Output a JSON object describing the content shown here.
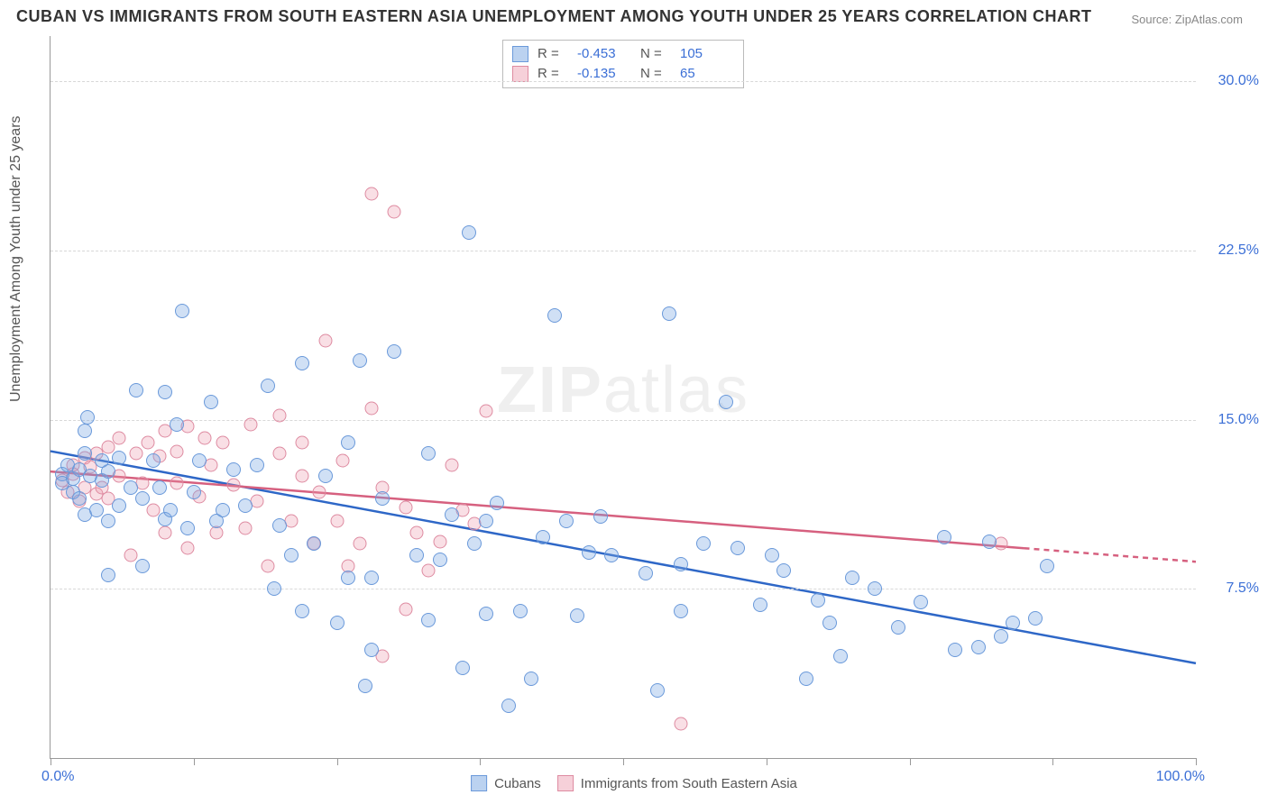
{
  "title": "CUBAN VS IMMIGRANTS FROM SOUTH EASTERN ASIA UNEMPLOYMENT AMONG YOUTH UNDER 25 YEARS CORRELATION CHART",
  "source_prefix": "Source: ",
  "source_name": "ZipAtlas.com",
  "y_axis_title": "Unemployment Among Youth under 25 years",
  "watermark_bold": "ZIP",
  "watermark_thin": "atlas",
  "chart": {
    "type": "scatter",
    "background_color": "#ffffff",
    "grid_color": "#d8d8d8",
    "xlim": [
      0,
      100
    ],
    "ylim": [
      0,
      32
    ],
    "x_labels": {
      "min": "0.0%",
      "max": "100.0%"
    },
    "y_ticks": [
      7.5,
      15.0,
      22.5,
      30.0
    ],
    "y_tick_labels": [
      "7.5%",
      "15.0%",
      "22.5%",
      "30.0%"
    ],
    "x_ticks": [
      0,
      12.5,
      25,
      37.5,
      50,
      62.5,
      75,
      87.5,
      100
    ],
    "series": {
      "blue": {
        "name": "Cubans",
        "R_label": "R =",
        "R": "-0.453",
        "N_label": "N =",
        "N": "105",
        "fill_color": "rgba(120,165,225,0.35)",
        "stroke_color": "#6a99da",
        "line_color": "#2e67c7",
        "trend": {
          "x1": 0,
          "y1": 13.6,
          "x2": 100,
          "y2": 4.2
        },
        "points": [
          [
            1,
            12.6
          ],
          [
            1,
            12.2
          ],
          [
            1.5,
            13
          ],
          [
            2,
            12.4
          ],
          [
            2,
            11.8
          ],
          [
            2.5,
            12.8
          ],
          [
            2.5,
            11.5
          ],
          [
            3,
            13.5
          ],
          [
            3,
            10.8
          ],
          [
            3,
            14.5
          ],
          [
            3.2,
            15.1
          ],
          [
            3.5,
            12.5
          ],
          [
            4,
            11.0
          ],
          [
            4.5,
            13.2
          ],
          [
            4.5,
            12.3
          ],
          [
            5,
            8.1
          ],
          [
            5,
            12.7
          ],
          [
            5,
            10.5
          ],
          [
            6,
            13.3
          ],
          [
            6,
            11.2
          ],
          [
            7,
            12.0
          ],
          [
            7.5,
            16.3
          ],
          [
            8,
            11.5
          ],
          [
            8,
            8.5
          ],
          [
            9,
            13.2
          ],
          [
            9.5,
            12.0
          ],
          [
            10,
            16.2
          ],
          [
            10,
            10.6
          ],
          [
            10.5,
            11.0
          ],
          [
            11,
            14.8
          ],
          [
            11.5,
            19.8
          ],
          [
            12,
            10.2
          ],
          [
            12.5,
            11.8
          ],
          [
            13,
            13.2
          ],
          [
            14,
            15.8
          ],
          [
            14.5,
            10.5
          ],
          [
            15,
            11.0
          ],
          [
            16,
            12.8
          ],
          [
            17,
            11.2
          ],
          [
            18,
            13.0
          ],
          [
            19,
            16.5
          ],
          [
            19.5,
            7.5
          ],
          [
            20,
            10.3
          ],
          [
            21,
            9.0
          ],
          [
            22,
            17.5
          ],
          [
            22,
            6.5
          ],
          [
            23,
            9.5
          ],
          [
            24,
            12.5
          ],
          [
            25,
            6.0
          ],
          [
            26,
            8.0
          ],
          [
            26,
            14.0
          ],
          [
            27,
            17.6
          ],
          [
            27.5,
            3.2
          ],
          [
            28,
            4.8
          ],
          [
            28,
            8
          ],
          [
            29,
            11.5
          ],
          [
            30,
            18.0
          ],
          [
            32,
            9.0
          ],
          [
            33,
            13.5
          ],
          [
            33,
            6.1
          ],
          [
            34,
            8.8
          ],
          [
            35,
            10.8
          ],
          [
            36,
            4.0
          ],
          [
            36.5,
            23.3
          ],
          [
            37,
            9.5
          ],
          [
            38,
            10.5
          ],
          [
            38,
            6.4
          ],
          [
            39,
            11.3
          ],
          [
            40,
            2.3
          ],
          [
            41,
            6.5
          ],
          [
            42,
            3.5
          ],
          [
            43,
            9.8
          ],
          [
            44,
            19.6
          ],
          [
            45,
            10.5
          ],
          [
            46,
            6.3
          ],
          [
            47,
            9.1
          ],
          [
            48,
            10.7
          ],
          [
            49,
            9.0
          ],
          [
            52,
            8.2
          ],
          [
            53,
            3.0
          ],
          [
            54,
            19.7
          ],
          [
            55,
            6.5
          ],
          [
            55,
            8.6
          ],
          [
            57,
            9.5
          ],
          [
            59,
            15.8
          ],
          [
            60,
            9.3
          ],
          [
            62,
            6.8
          ],
          [
            63,
            9.0
          ],
          [
            64,
            8.3
          ],
          [
            66,
            3.5
          ],
          [
            67,
            7.0
          ],
          [
            68,
            6.0
          ],
          [
            69,
            4.5
          ],
          [
            70,
            8.0
          ],
          [
            72,
            7.5
          ],
          [
            74,
            5.8
          ],
          [
            76,
            6.9
          ],
          [
            78,
            9.8
          ],
          [
            79,
            4.8
          ],
          [
            81,
            4.9
          ],
          [
            82,
            9.6
          ],
          [
            83,
            5.4
          ],
          [
            84,
            6.0
          ],
          [
            86,
            6.2
          ],
          [
            87,
            8.5
          ]
        ]
      },
      "pink": {
        "name": "Immigrants from South Eastern Asia",
        "R_label": "R =",
        "R": "-0.135",
        "N_label": "N =",
        "N": "65",
        "fill_color": "rgba(235,150,170,0.30)",
        "stroke_color": "#de8ba1",
        "line_color": "#d6607f",
        "trend": {
          "x1": 0,
          "y1": 12.7,
          "x2": 85,
          "y2": 9.3
        },
        "trend_ext": {
          "x1": 85,
          "y1": 9.3,
          "x2": 100,
          "y2": 8.7
        },
        "points": [
          [
            1,
            12.3
          ],
          [
            1.5,
            11.8
          ],
          [
            2,
            12.6
          ],
          [
            2,
            13.0
          ],
          [
            2.5,
            11.4
          ],
          [
            3,
            12.0
          ],
          [
            3,
            13.3
          ],
          [
            3.5,
            12.9
          ],
          [
            4,
            11.7
          ],
          [
            4,
            13.5
          ],
          [
            4.5,
            12.0
          ],
          [
            5,
            13.8
          ],
          [
            5,
            11.5
          ],
          [
            6,
            12.5
          ],
          [
            6,
            14.2
          ],
          [
            7,
            9.0
          ],
          [
            7.5,
            13.5
          ],
          [
            8,
            12.2
          ],
          [
            8.5,
            14.0
          ],
          [
            9,
            11.0
          ],
          [
            9.5,
            13.4
          ],
          [
            10,
            10.0
          ],
          [
            10,
            14.5
          ],
          [
            11,
            12.2
          ],
          [
            11,
            13.6
          ],
          [
            12,
            9.3
          ],
          [
            12,
            14.7
          ],
          [
            13,
            11.6
          ],
          [
            13.5,
            14.2
          ],
          [
            14,
            13.0
          ],
          [
            14.5,
            10.0
          ],
          [
            15,
            14.0
          ],
          [
            16,
            12.1
          ],
          [
            17,
            10.2
          ],
          [
            17.5,
            14.8
          ],
          [
            18,
            11.4
          ],
          [
            19,
            8.5
          ],
          [
            20,
            13.5
          ],
          [
            20,
            15.2
          ],
          [
            21,
            10.5
          ],
          [
            22,
            12.5
          ],
          [
            22,
            14.0
          ],
          [
            23,
            9.5
          ],
          [
            23.5,
            11.8
          ],
          [
            24,
            18.5
          ],
          [
            25,
            10.5
          ],
          [
            25.5,
            13.2
          ],
          [
            26,
            8.5
          ],
          [
            27,
            9.5
          ],
          [
            28,
            15.5
          ],
          [
            28,
            25.0
          ],
          [
            29,
            12.0
          ],
          [
            29,
            4.5
          ],
          [
            30,
            24.2
          ],
          [
            31,
            11.1
          ],
          [
            31,
            6.6
          ],
          [
            32,
            10.0
          ],
          [
            33,
            8.3
          ],
          [
            34,
            9.6
          ],
          [
            35,
            13.0
          ],
          [
            36,
            11.0
          ],
          [
            37,
            10.4
          ],
          [
            38,
            15.4
          ],
          [
            55,
            1.5
          ],
          [
            83,
            9.5
          ]
        ]
      }
    }
  }
}
